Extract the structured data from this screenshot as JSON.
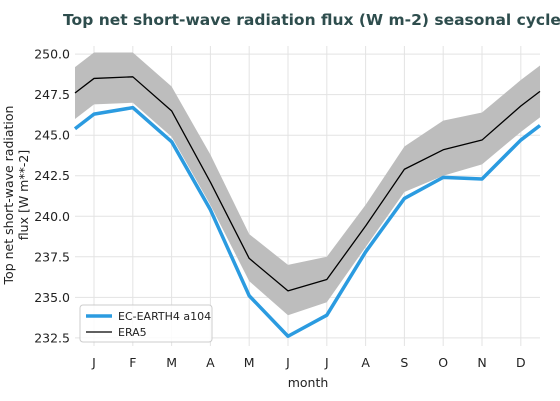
{
  "chart_data": {
    "type": "line",
    "title": "Top net short-wave radiation flux (W m-2) seasonal cycle",
    "xlabel": "month",
    "ylabel_line1": "Top net short-wave radiation",
    "ylabel_line2": "flux [W m**-2]",
    "categories": [
      "J",
      "F",
      "M",
      "A",
      "M",
      "J",
      "J",
      "A",
      "S",
      "O",
      "N",
      "D"
    ],
    "ylim": [
      232.0,
      250.5
    ],
    "yticks": [
      "250.0",
      "247.5",
      "245.0",
      "242.5",
      "240.0",
      "237.5",
      "235.0",
      "232.5"
    ],
    "grid": true,
    "legend_position": "lower-left",
    "series": [
      {
        "name": "EC-EARTH4 a104",
        "color": "#2b9be0",
        "values": [
          246.3,
          246.7,
          244.6,
          240.4,
          235.1,
          232.6,
          233.9,
          237.8,
          241.1,
          242.4,
          242.3,
          244.7
        ],
        "edge_left": 245.4,
        "edge_right": 245.6
      },
      {
        "name": "ERA5",
        "color": "#000000",
        "values": [
          248.5,
          248.6,
          246.5,
          242.1,
          237.4,
          235.4,
          236.1,
          239.4,
          242.9,
          244.1,
          244.7,
          246.8
        ],
        "edge_left": 247.6,
        "edge_right": 247.7,
        "band_upper": [
          250.1,
          250.1,
          248.0,
          243.8,
          238.9,
          237.0,
          237.5,
          240.7,
          244.3,
          245.9,
          246.4,
          248.4
        ],
        "band_lower": [
          246.9,
          247.0,
          244.9,
          240.7,
          236.0,
          233.9,
          234.7,
          238.1,
          241.5,
          242.5,
          243.2,
          245.2
        ],
        "band_upper_edge_left": 249.2,
        "band_upper_edge_right": 249.3,
        "band_lower_edge_left": 246.0,
        "band_lower_edge_right": 246.1,
        "band_color": "#bdbdbd"
      }
    ]
  }
}
